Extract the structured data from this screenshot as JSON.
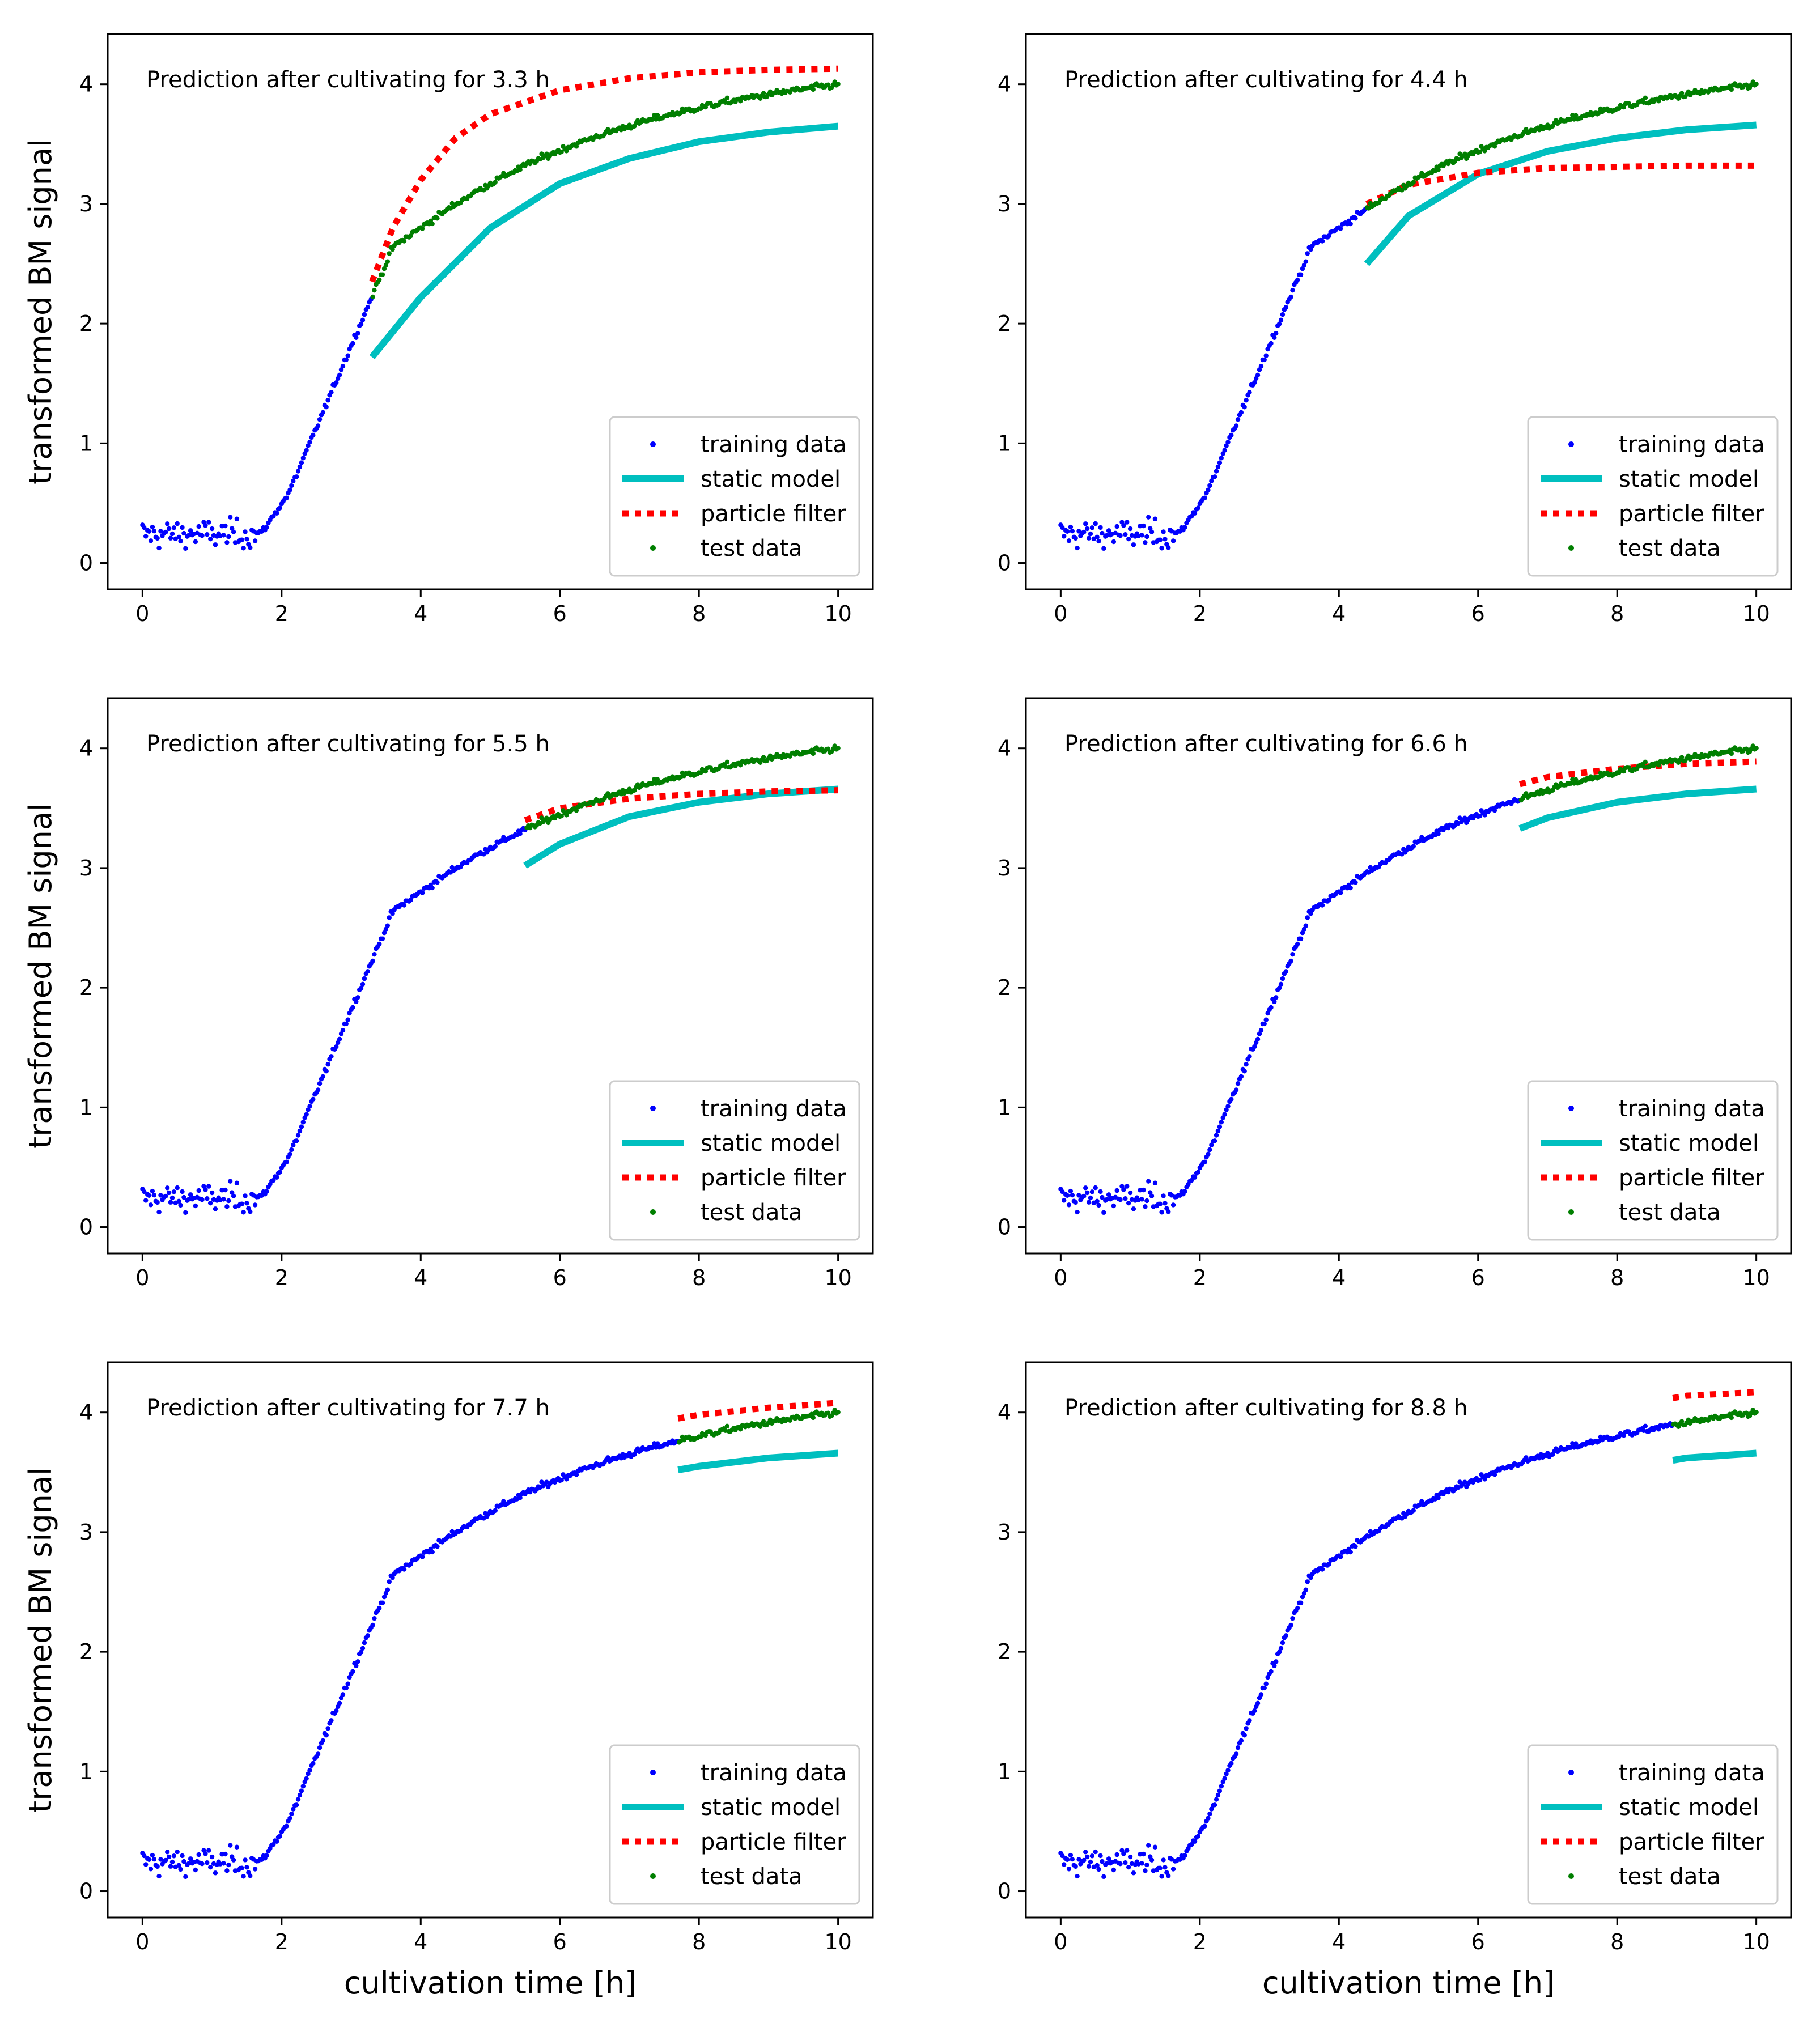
{
  "figure": {
    "legend_labels": [
      "training data",
      "static model",
      "particle filter",
      "test data"
    ],
    "colors": {
      "training": "#0000ff",
      "static": "#00bfbf",
      "particle": "#ff0000",
      "test": "#007f00",
      "axes": "#000000",
      "background": "#ffffff"
    }
  },
  "chart_data": [
    {
      "type": "line",
      "title": "Prediction after cultivating for 3.3 h",
      "xlabel": "",
      "ylabel": "transformed BM signal",
      "xlim": [
        -0.5,
        10.5
      ],
      "ylim": [
        -0.22,
        4.42
      ],
      "xticks": [
        0,
        2,
        4,
        6,
        8,
        10
      ],
      "yticks": [
        0,
        1,
        2,
        3,
        4
      ],
      "cutoff": 3.3,
      "legend": "lower right",
      "series": [
        {
          "name": "training data",
          "kind": "scatter",
          "x_range": [
            0,
            3.3
          ]
        },
        {
          "name": "static model",
          "kind": "line",
          "x": [
            3.3,
            4,
            5,
            6,
            7,
            8,
            9,
            10
          ],
          "y": [
            1.72,
            2.22,
            2.8,
            3.17,
            3.38,
            3.52,
            3.6,
            3.65
          ]
        },
        {
          "name": "particle filter",
          "kind": "dotted",
          "x": [
            3.3,
            3.6,
            4,
            4.5,
            5,
            6,
            7,
            8,
            9,
            10
          ],
          "y": [
            2.35,
            2.8,
            3.2,
            3.55,
            3.75,
            3.95,
            4.05,
            4.1,
            4.12,
            4.13
          ]
        },
        {
          "name": "test data",
          "kind": "scatter",
          "x_range": [
            3.3,
            10
          ]
        }
      ]
    },
    {
      "type": "line",
      "title": "Prediction after cultivating for 4.4 h",
      "xlabel": "",
      "ylabel": "",
      "xlim": [
        -0.5,
        10.5
      ],
      "ylim": [
        -0.22,
        4.42
      ],
      "xticks": [
        0,
        2,
        4,
        6,
        8,
        10
      ],
      "yticks": [
        0,
        1,
        2,
        3,
        4
      ],
      "cutoff": 4.4,
      "legend": "lower right",
      "series": [
        {
          "name": "training data",
          "kind": "scatter",
          "x_range": [
            0,
            4.4
          ]
        },
        {
          "name": "static model",
          "kind": "line",
          "x": [
            4.4,
            5,
            6,
            7,
            8,
            9,
            10
          ],
          "y": [
            2.5,
            2.9,
            3.25,
            3.44,
            3.55,
            3.62,
            3.66
          ]
        },
        {
          "name": "particle filter",
          "kind": "dotted",
          "x": [
            4.4,
            5,
            6,
            7,
            8,
            9,
            10
          ],
          "y": [
            3.0,
            3.16,
            3.26,
            3.3,
            3.31,
            3.32,
            3.32
          ]
        },
        {
          "name": "test data",
          "kind": "scatter",
          "x_range": [
            4.4,
            10
          ]
        }
      ]
    },
    {
      "type": "line",
      "title": "Prediction after cultivating for 5.5 h",
      "xlabel": "",
      "ylabel": "transformed BM signal",
      "xlim": [
        -0.5,
        10.5
      ],
      "ylim": [
        -0.22,
        4.42
      ],
      "xticks": [
        0,
        2,
        4,
        6,
        8,
        10
      ],
      "yticks": [
        0,
        1,
        2,
        3,
        4
      ],
      "cutoff": 5.5,
      "legend": "lower right",
      "series": [
        {
          "name": "training data",
          "kind": "scatter",
          "x_range": [
            0,
            5.5
          ]
        },
        {
          "name": "static model",
          "kind": "line",
          "x": [
            5.5,
            6,
            7,
            8,
            9,
            10
          ],
          "y": [
            3.02,
            3.2,
            3.43,
            3.55,
            3.62,
            3.66
          ]
        },
        {
          "name": "particle filter",
          "kind": "dotted",
          "x": [
            5.5,
            6,
            7,
            8,
            9,
            10
          ],
          "y": [
            3.4,
            3.5,
            3.58,
            3.62,
            3.64,
            3.65
          ]
        },
        {
          "name": "test data",
          "kind": "scatter",
          "x_range": [
            5.5,
            10
          ]
        }
      ]
    },
    {
      "type": "line",
      "title": "Prediction after cultivating for 6.6 h",
      "xlabel": "",
      "ylabel": "",
      "xlim": [
        -0.5,
        10.5
      ],
      "ylim": [
        -0.22,
        4.42
      ],
      "xticks": [
        0,
        2,
        4,
        6,
        8,
        10
      ],
      "yticks": [
        0,
        1,
        2,
        3,
        4
      ],
      "cutoff": 6.6,
      "legend": "lower right",
      "series": [
        {
          "name": "training data",
          "kind": "scatter",
          "x_range": [
            0,
            6.6
          ]
        },
        {
          "name": "static model",
          "kind": "line",
          "x": [
            6.6,
            7,
            8,
            9,
            10
          ],
          "y": [
            3.33,
            3.42,
            3.55,
            3.62,
            3.66
          ]
        },
        {
          "name": "particle filter",
          "kind": "dotted",
          "x": [
            6.6,
            7,
            8,
            9,
            10
          ],
          "y": [
            3.7,
            3.76,
            3.83,
            3.87,
            3.89
          ]
        },
        {
          "name": "test data",
          "kind": "scatter",
          "x_range": [
            6.6,
            10
          ]
        }
      ]
    },
    {
      "type": "line",
      "title": "Prediction after cultivating for 7.7 h",
      "xlabel": "cultivation time [h]",
      "ylabel": "transformed BM signal",
      "xlim": [
        -0.5,
        10.5
      ],
      "ylim": [
        -0.22,
        4.42
      ],
      "xticks": [
        0,
        2,
        4,
        6,
        8,
        10
      ],
      "yticks": [
        0,
        1,
        2,
        3,
        4
      ],
      "cutoff": 7.7,
      "legend": "lower right",
      "series": [
        {
          "name": "training data",
          "kind": "scatter",
          "x_range": [
            0,
            7.7
          ]
        },
        {
          "name": "static model",
          "kind": "line",
          "x": [
            7.7,
            8,
            9,
            10
          ],
          "y": [
            3.52,
            3.55,
            3.62,
            3.66
          ]
        },
        {
          "name": "particle filter",
          "kind": "dotted",
          "x": [
            7.7,
            8,
            9,
            10
          ],
          "y": [
            3.95,
            3.98,
            4.04,
            4.08
          ]
        },
        {
          "name": "test data",
          "kind": "scatter",
          "x_range": [
            7.7,
            10
          ]
        }
      ]
    },
    {
      "type": "line",
      "title": "Prediction after cultivating for 8.8 h",
      "xlabel": "cultivation time [h]",
      "ylabel": "",
      "xlim": [
        -0.5,
        10.5
      ],
      "ylim": [
        -0.22,
        4.42
      ],
      "xticks": [
        0,
        2,
        4,
        6,
        8,
        10
      ],
      "yticks": [
        0,
        1,
        2,
        3,
        4
      ],
      "cutoff": 8.8,
      "legend": "lower right",
      "series": [
        {
          "name": "training data",
          "kind": "scatter",
          "x_range": [
            0,
            8.8
          ]
        },
        {
          "name": "static model",
          "kind": "line",
          "x": [
            8.8,
            9,
            10
          ],
          "y": [
            3.6,
            3.62,
            3.66
          ]
        },
        {
          "name": "particle filter",
          "kind": "dotted",
          "x": [
            8.8,
            9,
            10
          ],
          "y": [
            4.12,
            4.14,
            4.17
          ]
        },
        {
          "name": "test data",
          "kind": "scatter",
          "x_range": [
            8.8,
            10
          ]
        }
      ]
    }
  ]
}
